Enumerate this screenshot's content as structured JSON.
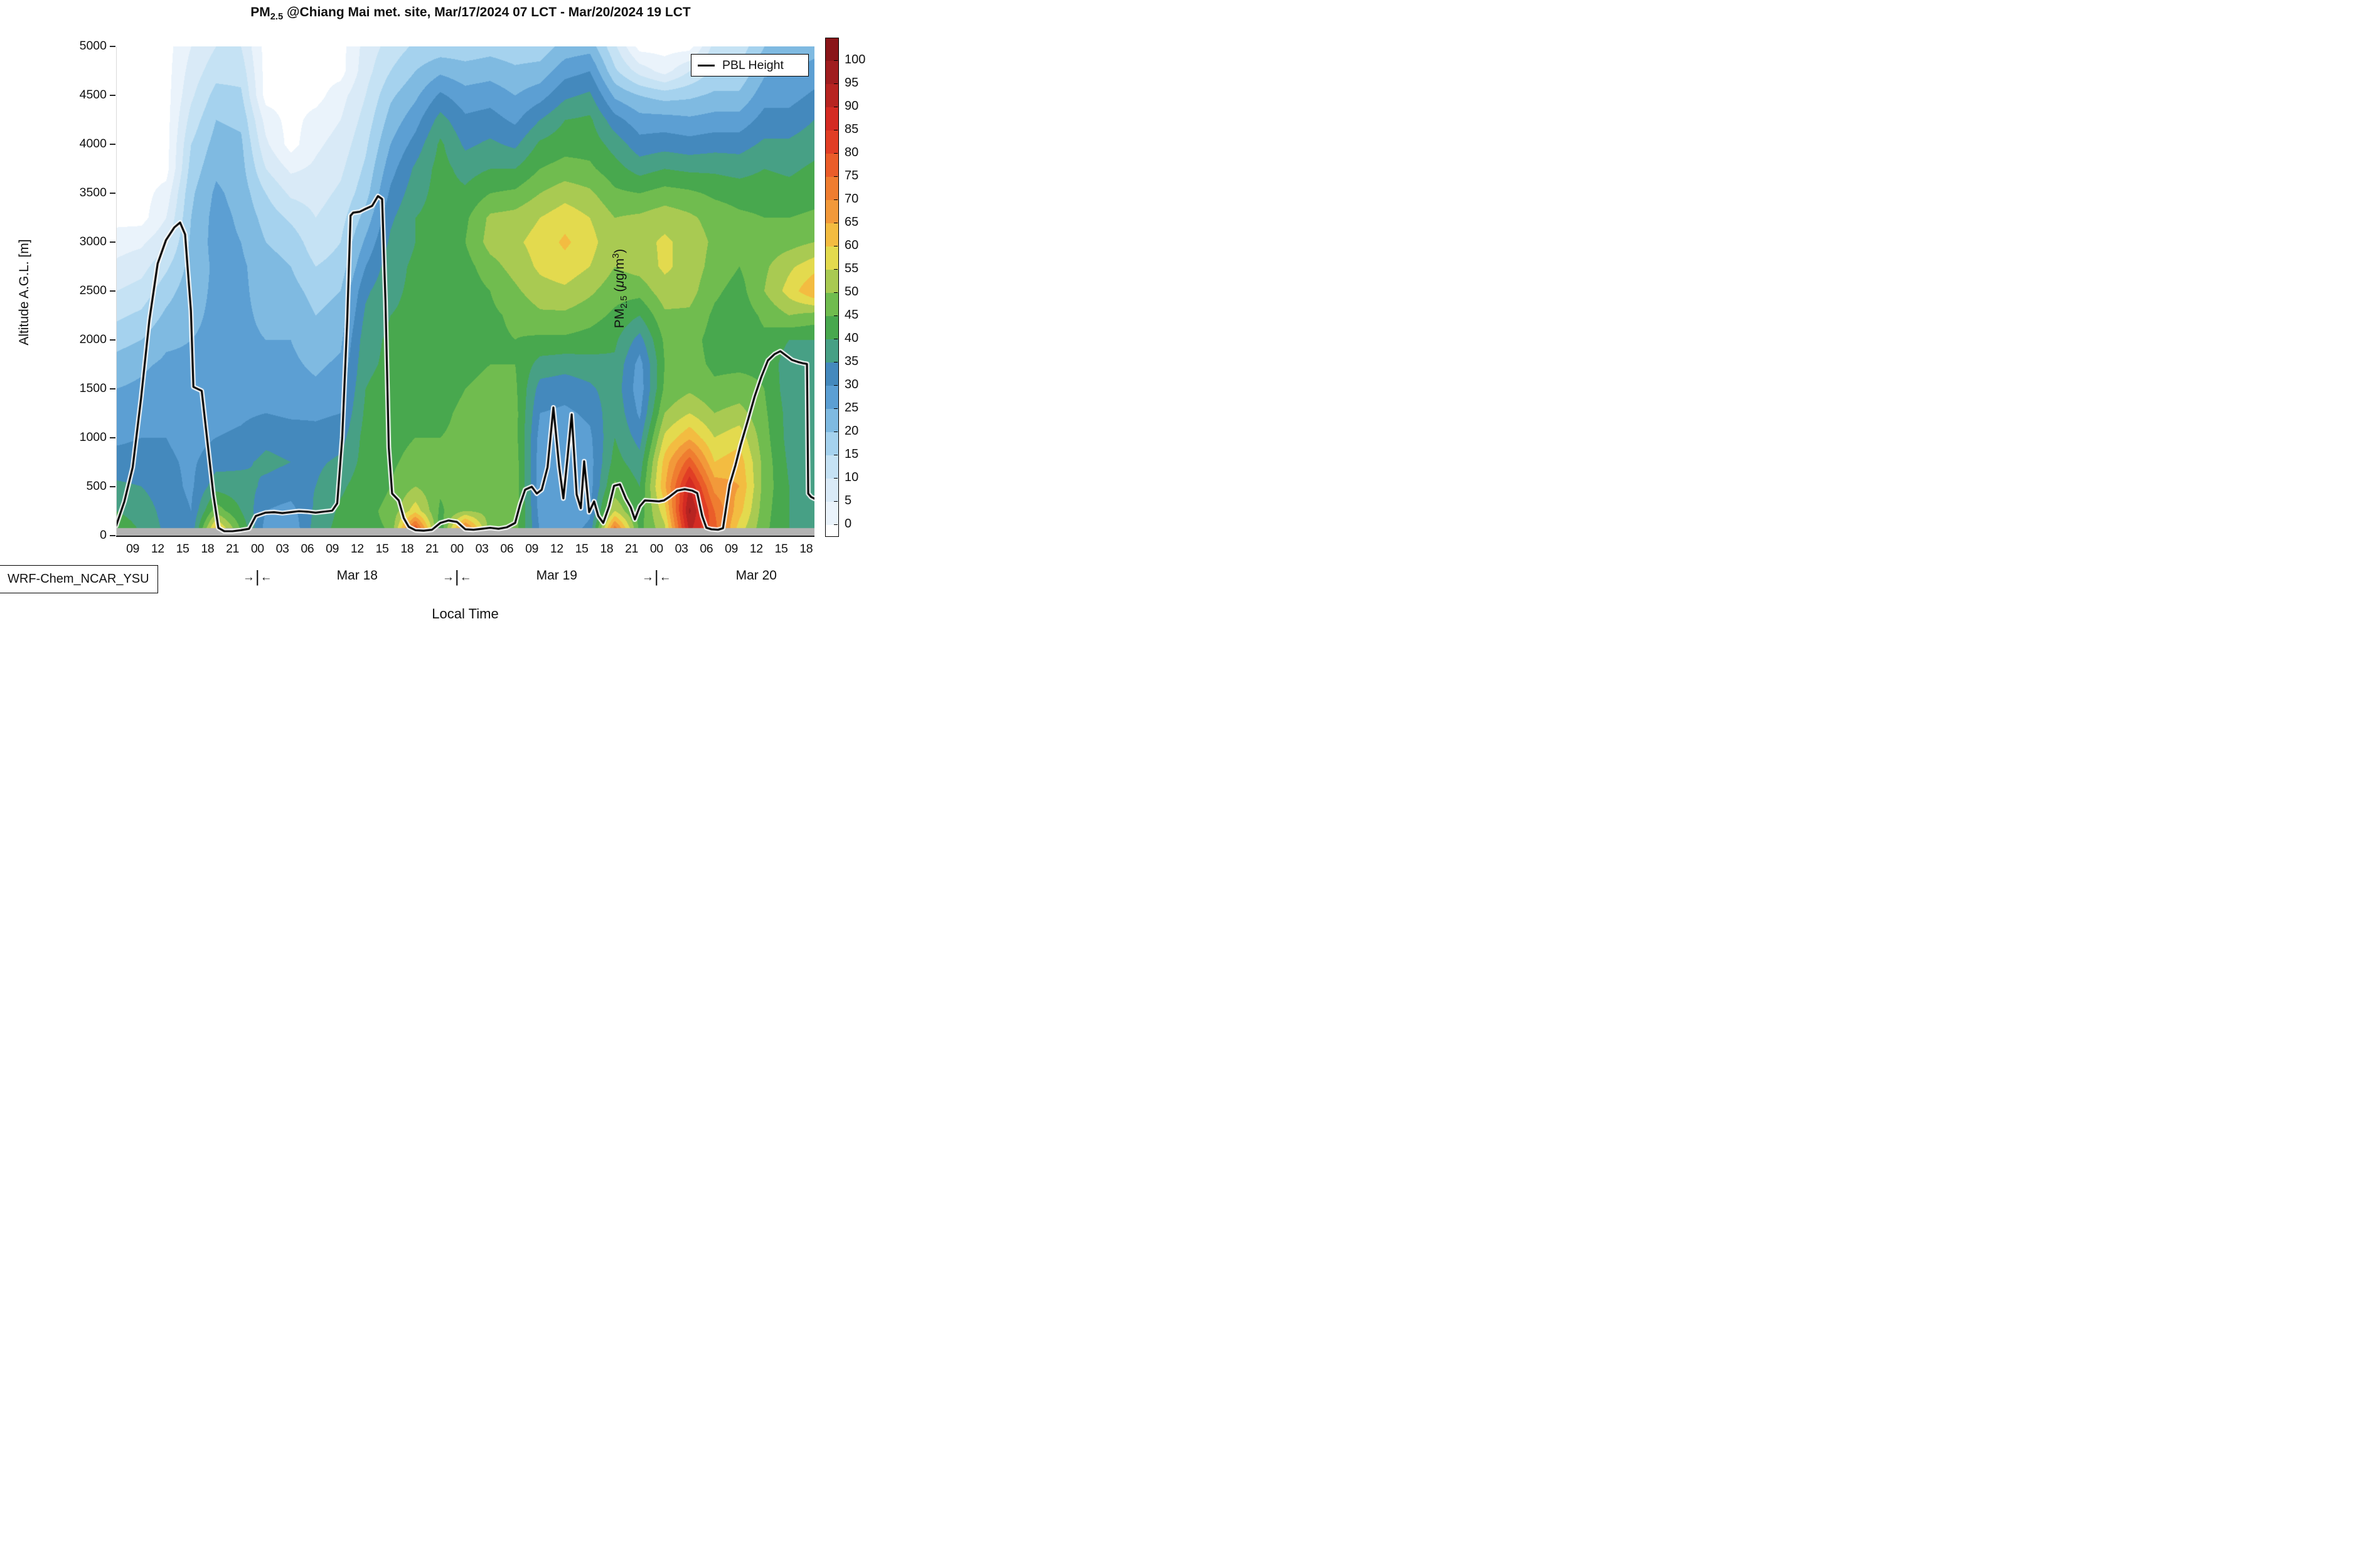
{
  "title": {
    "pm": "PM",
    "sub": "2.5",
    "rest": " @Chiang Mai met. site, Mar/17/2024 07 LCT - Mar/20/2024 19 LCT"
  },
  "legend": {
    "pbl_label": "PBL Height"
  },
  "model_label": "WRF-Chem_NCAR_YSU",
  "axes": {
    "y_label": "Altitude A.G.L. [m]",
    "x_label": "Local Time",
    "y_ticks": [
      0,
      500,
      1000,
      1500,
      2000,
      2500,
      3000,
      3500,
      4000,
      4500,
      5000
    ],
    "x_tick_hours": [
      2,
      5,
      8,
      11,
      14,
      17,
      20,
      23,
      26,
      29,
      32,
      35,
      38,
      41,
      44,
      47,
      50,
      53,
      56,
      59,
      62,
      65,
      68,
      71,
      74,
      77,
      80,
      83
    ],
    "x_tick_labels": [
      "09",
      "12",
      "15",
      "18",
      "21",
      "00",
      "03",
      "06",
      "09",
      "12",
      "15",
      "18",
      "21",
      "00",
      "03",
      "06",
      "09",
      "12",
      "15",
      "18",
      "21",
      "00",
      "03",
      "06",
      "09",
      "12",
      "15",
      "18"
    ],
    "day_separator": {
      "left": "→",
      "bar": "|",
      "right": "←"
    },
    "day_separator_hours": [
      17,
      41,
      65
    ],
    "date_labels": [
      {
        "label": "Mar 18",
        "hour": 29
      },
      {
        "label": "Mar 19",
        "hour": 53
      },
      {
        "label": "Mar 20",
        "hour": 77
      }
    ]
  },
  "colorbar": {
    "ticks": [
      0,
      5,
      10,
      15,
      20,
      25,
      30,
      35,
      40,
      45,
      50,
      55,
      60,
      65,
      70,
      75,
      80,
      85,
      90,
      95,
      100
    ],
    "title": {
      "pm": "PM",
      "sub": "2.5",
      "open": " (",
      "mu": "μ",
      "unit": "g/m",
      "sup": "3",
      "close": ")"
    }
  },
  "chart_data": {
    "type": "heatmap",
    "title": "PM2.5 @Chiang Mai met. site, Mar/17/2024 07 LCT - Mar/20/2024 19 LCT",
    "xlabel": "Local Time",
    "ylabel": "Altitude A.G.L. [m]",
    "x_range_hours_from_start": [
      0,
      84
    ],
    "start_time": "Mar/17/2024 07 LCT",
    "end_time": "Mar/20/2024 19 LCT",
    "ylim": [
      0,
      5000
    ],
    "value_units": "ug/m3",
    "contour_levels": [
      0,
      5,
      10,
      15,
      20,
      25,
      30,
      35,
      40,
      45,
      50,
      55,
      60,
      65,
      70,
      75,
      80,
      85,
      90,
      95,
      100
    ],
    "band_colors": [
      "#eaf3fb",
      "#d9eaf7",
      "#c5e2f4",
      "#a5d2ee",
      "#7fbae1",
      "#5c9fd3",
      "#4489bd",
      "#47a085",
      "#48a84e",
      "#70bc4f",
      "#a9ca52",
      "#e3da4e",
      "#f3bc41",
      "#f2993a",
      "#ef7d30",
      "#ea5d29",
      "#e13e25",
      "#d42b23",
      "#b72421",
      "#a01d1f"
    ],
    "over_color": "#8a1519",
    "under_color": "#ffffff",
    "surface_strip_color": "#b3b3b3",
    "surface_strip_top_m": 77,
    "grid_hours": [
      0,
      3,
      6,
      9,
      12,
      15,
      18,
      21,
      24,
      27,
      30,
      33,
      36,
      39,
      42,
      45,
      48,
      51,
      54,
      57,
      60,
      63,
      66,
      69,
      72,
      75,
      78,
      81,
      84
    ],
    "grid_altitudes_m": [
      0,
      250,
      500,
      750,
      1000,
      1250,
      1500,
      1750,
      2000,
      2250,
      2500,
      2750,
      3000,
      3250,
      3500,
      3750,
      4000,
      4250,
      4500,
      4750,
      5000
    ],
    "values_by_column": [
      [
        44,
        40,
        36,
        32,
        29,
        27,
        25,
        22,
        18,
        14,
        10,
        6,
        3,
        -2,
        -2,
        -2,
        -2,
        -2,
        -2,
        -2,
        -2
      ],
      [
        40,
        38,
        35,
        32,
        30,
        28,
        26,
        24,
        20,
        16,
        12,
        8,
        4,
        -2,
        -2,
        -2,
        -2,
        -2,
        -2,
        -2,
        -2
      ],
      [
        34,
        33,
        32,
        31,
        30,
        29,
        28,
        26,
        24,
        21,
        18,
        14,
        9,
        5,
        2,
        -2,
        -2,
        -2,
        -2,
        -2,
        -2
      ],
      [
        31,
        30,
        29,
        29,
        28,
        28,
        27,
        26,
        25,
        24,
        23,
        22,
        21,
        20,
        19,
        17,
        15,
        12,
        9,
        7,
        5
      ],
      [
        68,
        48,
        38,
        33,
        30,
        28,
        27,
        27,
        26,
        26,
        26,
        26,
        27,
        27,
        26,
        24,
        22,
        20,
        17,
        13,
        10
      ],
      [
        46,
        40,
        37,
        34,
        31,
        29,
        28,
        27,
        26,
        26,
        26,
        26,
        25,
        24,
        23,
        22,
        21,
        19,
        16,
        13,
        10
      ],
      [
        27,
        30,
        34,
        36,
        34,
        30,
        28,
        26,
        25,
        24,
        23,
        22,
        20,
        18,
        15,
        10,
        6,
        3,
        -2,
        -2,
        -2
      ],
      [
        25,
        28,
        33,
        35,
        33,
        29,
        27,
        26,
        25,
        24,
        22,
        20,
        18,
        14,
        9,
        4,
        -2,
        -2,
        -2,
        -2,
        -2
      ],
      [
        38,
        36,
        35,
        34,
        32,
        29,
        26,
        24,
        22,
        20,
        18,
        15,
        12,
        10,
        8,
        6,
        4,
        2,
        -2,
        -2,
        -2
      ],
      [
        42,
        41,
        39,
        36,
        33,
        30,
        28,
        26,
        24,
        22,
        20,
        17,
        15,
        13,
        11,
        9,
        7,
        5,
        3,
        -2,
        -2
      ],
      [
        44,
        44,
        43,
        42,
        42,
        41,
        40,
        39,
        38,
        36,
        34,
        30,
        26,
        22,
        18,
        16,
        14,
        12,
        10,
        8,
        7
      ],
      [
        45,
        46,
        45,
        44,
        43,
        43,
        42,
        41,
        41,
        40,
        39,
        38,
        36,
        34,
        31,
        28,
        25,
        22,
        19,
        15,
        12
      ],
      [
        88,
        58,
        50,
        47,
        45,
        44,
        43,
        42,
        41,
        41,
        41,
        41,
        40,
        40,
        38,
        36,
        32,
        28,
        24,
        20,
        16
      ],
      [
        40,
        44,
        46,
        46,
        45,
        44,
        43,
        42,
        42,
        41,
        41,
        41,
        41,
        42,
        42,
        42,
        41,
        37,
        31,
        24,
        17
      ],
      [
        82,
        50,
        48,
        47,
        46,
        46,
        45,
        44,
        43,
        42,
        42,
        43,
        45,
        44,
        41,
        38,
        34,
        31,
        27,
        22,
        17
      ],
      [
        47,
        48,
        48,
        47,
        47,
        46,
        46,
        45,
        44,
        44,
        45,
        48,
        52,
        51,
        45,
        40,
        36,
        32,
        28,
        23,
        18
      ],
      [
        47,
        48,
        48,
        48,
        47,
        47,
        46,
        45,
        45,
        46,
        49,
        52,
        54,
        52,
        46,
        40,
        34,
        29,
        25,
        21,
        17
      ],
      [
        30,
        28,
        27,
        27,
        28,
        30,
        33,
        38,
        44,
        49,
        53,
        56,
        57,
        55,
        50,
        45,
        41,
        35,
        28,
        22,
        17
      ],
      [
        28,
        26,
        26,
        26,
        27,
        29,
        32,
        37,
        44,
        49,
        54,
        58,
        61,
        58,
        53,
        47,
        43,
        40,
        34,
        28,
        22
      ],
      [
        32,
        29,
        28,
        28,
        29,
        31,
        34,
        38,
        43,
        47,
        51,
        55,
        57,
        55,
        51,
        46,
        43,
        41,
        36,
        30,
        23
      ],
      [
        80,
        55,
        46,
        42,
        40,
        39,
        38,
        39,
        41,
        44,
        47,
        50,
        51,
        50,
        46,
        42,
        38,
        32,
        24,
        16,
        11
      ],
      [
        44,
        42,
        40,
        37,
        33,
        29,
        27,
        28,
        33,
        40,
        47,
        52,
        53,
        51,
        45,
        38,
        32,
        27,
        20,
        8,
        -2
      ],
      [
        52,
        58,
        64,
        62,
        56,
        50,
        46,
        45,
        46,
        49,
        53,
        56,
        56,
        53,
        47,
        40,
        33,
        27,
        18,
        3,
        -2
      ],
      [
        90,
        96,
        90,
        78,
        64,
        55,
        49,
        47,
        47,
        49,
        52,
        53,
        53,
        51,
        46,
        39,
        32,
        26,
        19,
        10,
        -2
      ],
      [
        78,
        75,
        68,
        60,
        55,
        50,
        46,
        44,
        43,
        44,
        46,
        48,
        49,
        48,
        44,
        39,
        33,
        27,
        21,
        16,
        12
      ],
      [
        56,
        62,
        65,
        63,
        58,
        52,
        47,
        44,
        42,
        42,
        43,
        45,
        46,
        46,
        43,
        38,
        33,
        27,
        21,
        16,
        12
      ],
      [
        46,
        47,
        48,
        48,
        47,
        46,
        45,
        44,
        44,
        46,
        50,
        49,
        47,
        45,
        43,
        40,
        36,
        32,
        28,
        24,
        20
      ],
      [
        40,
        40,
        40,
        39,
        38,
        38,
        37,
        37,
        40,
        50,
        57,
        54,
        48,
        45,
        42,
        39,
        36,
        32,
        28,
        25,
        21
      ],
      [
        38,
        38,
        38,
        37,
        37,
        36,
        36,
        37,
        40,
        48,
        65,
        58,
        50,
        46,
        43,
        41,
        38,
        35,
        31,
        27,
        23
      ]
    ],
    "pbl_height_series": [
      [
        0,
        100
      ],
      [
        1,
        350
      ],
      [
        2,
        700
      ],
      [
        3,
        1400
      ],
      [
        4,
        2200
      ],
      [
        5,
        2780
      ],
      [
        6,
        3020
      ],
      [
        7,
        3150
      ],
      [
        7.7,
        3200
      ],
      [
        8.3,
        3080
      ],
      [
        9,
        2300
      ],
      [
        9.3,
        1520
      ],
      [
        10.3,
        1480
      ],
      [
        11,
        950
      ],
      [
        11.7,
        420
      ],
      [
        12.3,
        80
      ],
      [
        13,
        45
      ],
      [
        14,
        45
      ],
      [
        15,
        55
      ],
      [
        16,
        70
      ],
      [
        16.8,
        200
      ],
      [
        18,
        235
      ],
      [
        19,
        240
      ],
      [
        20,
        230
      ],
      [
        21,
        240
      ],
      [
        22,
        250
      ],
      [
        23,
        245
      ],
      [
        24,
        235
      ],
      [
        25,
        245
      ],
      [
        26,
        255
      ],
      [
        26.6,
        330
      ],
      [
        27.2,
        1000
      ],
      [
        27.8,
        2200
      ],
      [
        28.2,
        3270
      ],
      [
        28.5,
        3300
      ],
      [
        29.3,
        3310
      ],
      [
        30,
        3340
      ],
      [
        30.8,
        3370
      ],
      [
        31.5,
        3470
      ],
      [
        32,
        3440
      ],
      [
        32.4,
        2400
      ],
      [
        32.8,
        900
      ],
      [
        33.2,
        430
      ],
      [
        34,
        360
      ],
      [
        34.6,
        180
      ],
      [
        35.2,
        90
      ],
      [
        36,
        55
      ],
      [
        37,
        50
      ],
      [
        38,
        60
      ],
      [
        39,
        130
      ],
      [
        40,
        155
      ],
      [
        41,
        140
      ],
      [
        42,
        65
      ],
      [
        43,
        60
      ],
      [
        44,
        70
      ],
      [
        45,
        80
      ],
      [
        46,
        70
      ],
      [
        47,
        85
      ],
      [
        48,
        130
      ],
      [
        48.6,
        320
      ],
      [
        49.2,
        470
      ],
      [
        50,
        500
      ],
      [
        50.6,
        430
      ],
      [
        51.2,
        470
      ],
      [
        51.9,
        700
      ],
      [
        52.6,
        1310
      ],
      [
        53.3,
        700
      ],
      [
        53.8,
        380
      ],
      [
        54.3,
        800
      ],
      [
        54.8,
        1240
      ],
      [
        55.4,
        420
      ],
      [
        55.9,
        280
      ],
      [
        56.3,
        760
      ],
      [
        56.9,
        240
      ],
      [
        57.5,
        350
      ],
      [
        58,
        200
      ],
      [
        58.6,
        130
      ],
      [
        59.3,
        300
      ],
      [
        59.9,
        510
      ],
      [
        60.6,
        525
      ],
      [
        61.3,
        380
      ],
      [
        61.9,
        290
      ],
      [
        62.4,
        165
      ],
      [
        63,
        300
      ],
      [
        63.6,
        360
      ],
      [
        64.5,
        355
      ],
      [
        65.3,
        350
      ],
      [
        65.9,
        360
      ],
      [
        66.6,
        400
      ],
      [
        67.5,
        460
      ],
      [
        68.4,
        475
      ],
      [
        69.3,
        460
      ],
      [
        69.9,
        435
      ],
      [
        70.5,
        200
      ],
      [
        71,
        80
      ],
      [
        71.6,
        65
      ],
      [
        72.4,
        60
      ],
      [
        73,
        75
      ],
      [
        73.4,
        300
      ],
      [
        73.8,
        520
      ],
      [
        74.5,
        720
      ],
      [
        75.1,
        920
      ],
      [
        76,
        1180
      ],
      [
        76.8,
        1420
      ],
      [
        77.6,
        1620
      ],
      [
        78.4,
        1790
      ],
      [
        79.2,
        1855
      ],
      [
        79.9,
        1885
      ],
      [
        80.6,
        1840
      ],
      [
        81.3,
        1795
      ],
      [
        82,
        1775
      ],
      [
        82.7,
        1760
      ],
      [
        83.1,
        1755
      ],
      [
        83.25,
        430
      ],
      [
        83.6,
        395
      ],
      [
        84,
        378
      ]
    ],
    "legend": {
      "entries": [
        {
          "label": "PBL Height",
          "style": "black line"
        }
      ],
      "position": "upper right"
    }
  }
}
